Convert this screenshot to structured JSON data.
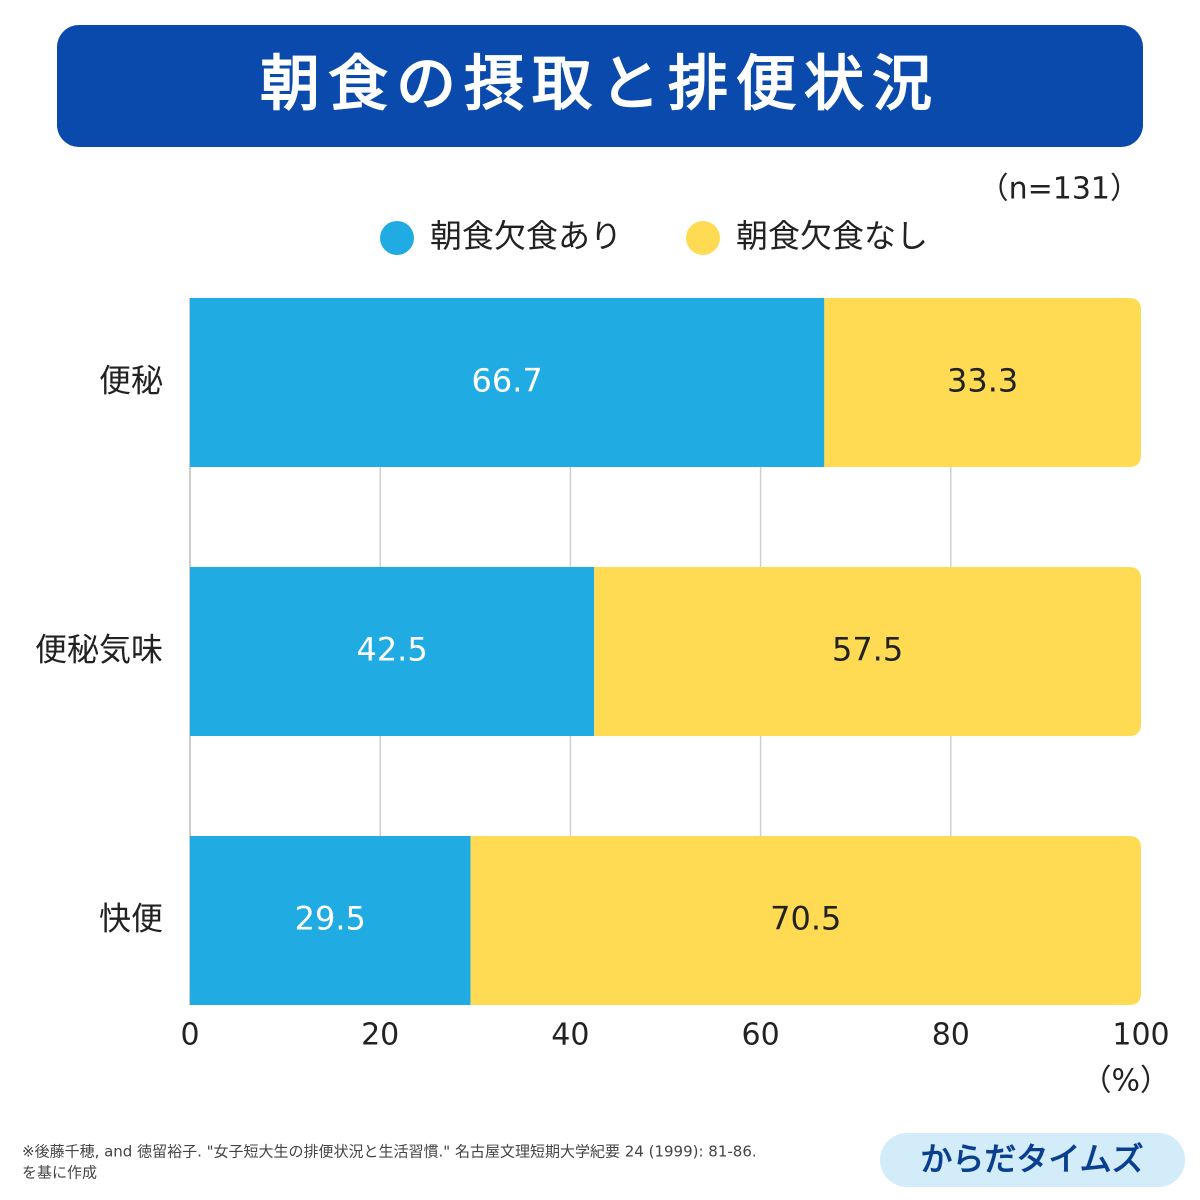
{
  "chart_data": {
    "type": "bar",
    "orientation": "horizontal",
    "stacked": true,
    "title": "朝食の摂取と排便状況",
    "note": "（n=131）",
    "x_unit": "（%）",
    "categories": [
      "便秘",
      "便秘気味",
      "快便"
    ],
    "series": [
      {
        "name": "朝食欠食あり",
        "color": "#20ace2",
        "values": [
          66.7,
          42.5,
          29.5
        ]
      },
      {
        "name": "朝食欠食なし",
        "color": "#fedb52",
        "values": [
          33.3,
          57.5,
          70.5
        ]
      }
    ],
    "xlim": [
      0,
      100
    ],
    "xticks": [
      0,
      20,
      40,
      60,
      80,
      100
    ],
    "grid": true
  },
  "footnote": [
    "※後藤千穂, and 徳留裕子. \"女子短大生の排便状況と生活習慣.\" 名古屋文理短期大学紀要 24 (1999): 81-86.",
    "を基に作成"
  ],
  "brand": "からだタイムズ"
}
